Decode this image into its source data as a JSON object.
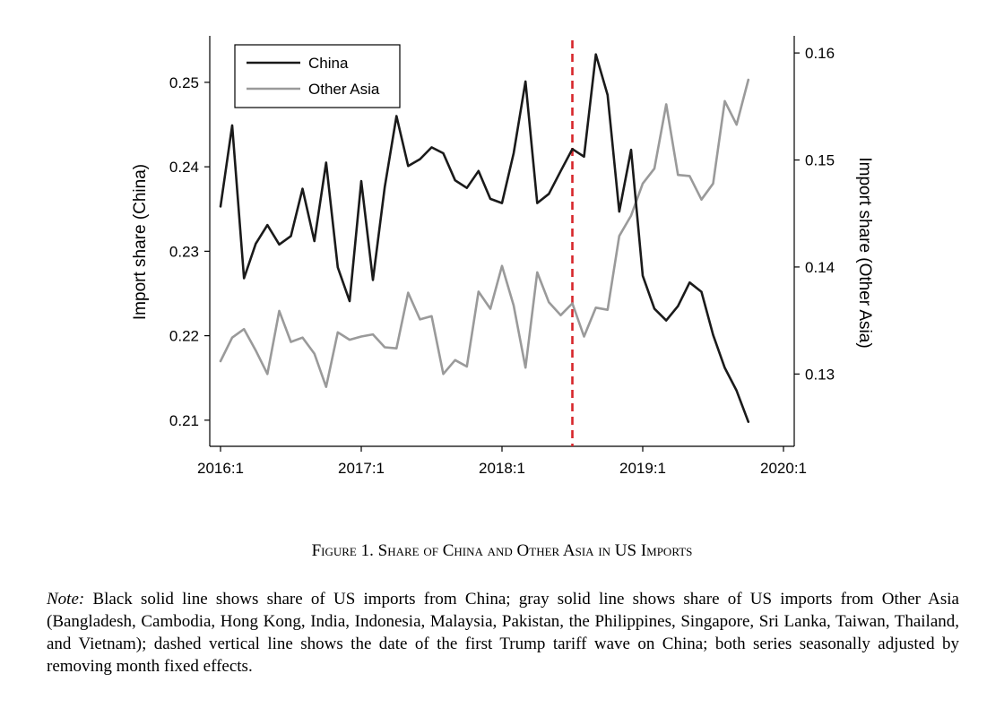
{
  "chart_data": {
    "type": "line",
    "ylabel": "Import share (China)",
    "y2label": "Import share (Other Asia)",
    "xlim": [
      2016.0,
      2020.0
    ],
    "ylim": [
      0.2085,
      0.2555
    ],
    "y2lim": [
      0.1245,
      0.1616
    ],
    "x_ticks": [
      {
        "value": 2016.0,
        "label": "2016:1"
      },
      {
        "value": 2017.0,
        "label": "2017:1"
      },
      {
        "value": 2018.0,
        "label": "2018:1"
      },
      {
        "value": 2019.0,
        "label": "2019:1"
      },
      {
        "value": 2020.0,
        "label": "2020:1"
      }
    ],
    "y_ticks": [
      {
        "value": 0.21,
        "label": "0.21"
      },
      {
        "value": 0.22,
        "label": "0.22"
      },
      {
        "value": 0.23,
        "label": "0.23"
      },
      {
        "value": 0.24,
        "label": "0.24"
      },
      {
        "value": 0.25,
        "label": "0.25"
      }
    ],
    "y2_ticks": [
      {
        "value": 0.13,
        "label": "0.13"
      },
      {
        "value": 0.14,
        "label": "0.14"
      },
      {
        "value": 0.15,
        "label": "0.15"
      },
      {
        "value": 0.16,
        "label": "0.16"
      }
    ],
    "vline": {
      "x": 2018.5,
      "color": "#d7262b",
      "style": "dashed"
    },
    "grid": false,
    "legend_position": "top-left",
    "series": [
      {
        "name": "China",
        "axis": "left",
        "color": "#1a1a1a",
        "x": [
          2016.0,
          2016.083,
          2016.167,
          2016.25,
          2016.333,
          2016.417,
          2016.5,
          2016.583,
          2016.667,
          2016.75,
          2016.833,
          2016.917,
          2017.0,
          2017.083,
          2017.167,
          2017.25,
          2017.333,
          2017.417,
          2017.5,
          2017.583,
          2017.667,
          2017.75,
          2017.833,
          2017.917,
          2018.0,
          2018.083,
          2018.167,
          2018.25,
          2018.333,
          2018.417,
          2018.5,
          2018.583,
          2018.667,
          2018.75,
          2018.833,
          2018.917,
          2019.0,
          2019.083,
          2019.167,
          2019.25,
          2019.333,
          2019.417,
          2019.5,
          2019.583,
          2019.667,
          2019.75
        ],
        "values": [
          0.2353,
          0.2449,
          0.2268,
          0.2309,
          0.2331,
          0.2308,
          0.2318,
          0.2374,
          0.2312,
          0.2405,
          0.2281,
          0.2241,
          0.2383,
          0.2266,
          0.2376,
          0.246,
          0.2401,
          0.2409,
          0.2423,
          0.2416,
          0.2384,
          0.2375,
          0.2395,
          0.2362,
          0.2357,
          0.2416,
          0.2501,
          0.2357,
          0.2368,
          0.2395,
          0.2421,
          0.2412,
          0.2533,
          0.2485,
          0.2347,
          0.242,
          0.2271,
          0.2232,
          0.2218,
          0.2235,
          0.2263,
          0.2252,
          0.2201,
          0.2162,
          0.2135,
          0.2098
        ]
      },
      {
        "name": "Other Asia",
        "axis": "right",
        "color": "#9a9a9a",
        "x": [
          2016.0,
          2016.083,
          2016.167,
          2016.25,
          2016.333,
          2016.417,
          2016.5,
          2016.583,
          2016.667,
          2016.75,
          2016.833,
          2016.917,
          2017.0,
          2017.083,
          2017.167,
          2017.25,
          2017.333,
          2017.417,
          2017.5,
          2017.583,
          2017.667,
          2017.75,
          2017.833,
          2017.917,
          2018.0,
          2018.083,
          2018.167,
          2018.25,
          2018.333,
          2018.417,
          2018.5,
          2018.583,
          2018.667,
          2018.75,
          2018.833,
          2018.917,
          2019.0,
          2019.083,
          2019.167,
          2019.25,
          2019.333,
          2019.417,
          2019.5,
          2019.583,
          2019.667,
          2019.75
        ],
        "values": [
          0.1312,
          0.1334,
          0.1342,
          0.1322,
          0.13,
          0.1359,
          0.133,
          0.1334,
          0.1319,
          0.1288,
          0.1339,
          0.1332,
          0.1335,
          0.1337,
          0.1325,
          0.1324,
          0.1376,
          0.1351,
          0.1354,
          0.13,
          0.1313,
          0.1307,
          0.1377,
          0.1361,
          0.1401,
          0.1364,
          0.1306,
          0.1395,
          0.1367,
          0.1355,
          0.1366,
          0.1335,
          0.1362,
          0.136,
          0.1429,
          0.1448,
          0.1478,
          0.1492,
          0.1552,
          0.1486,
          0.1485,
          0.1463,
          0.1478,
          0.1555,
          0.1533,
          0.1575
        ]
      }
    ]
  },
  "caption": "Figure 1. Share of China and Other Asia in US Imports",
  "note": {
    "label": "Note:",
    "text": " Black solid line shows share of US imports from China; gray solid line shows share of US imports from Other Asia (Bangladesh, Cambodia, Hong Kong, India, Indonesia, Malaysia, Pakistan, the Philippines, Singapore, Sri Lanka, Taiwan, Thailand, and Vietnam); dashed vertical line shows the date of the first Trump tariff wave on China; both series seasonally adjusted by removing month fixed effects."
  }
}
